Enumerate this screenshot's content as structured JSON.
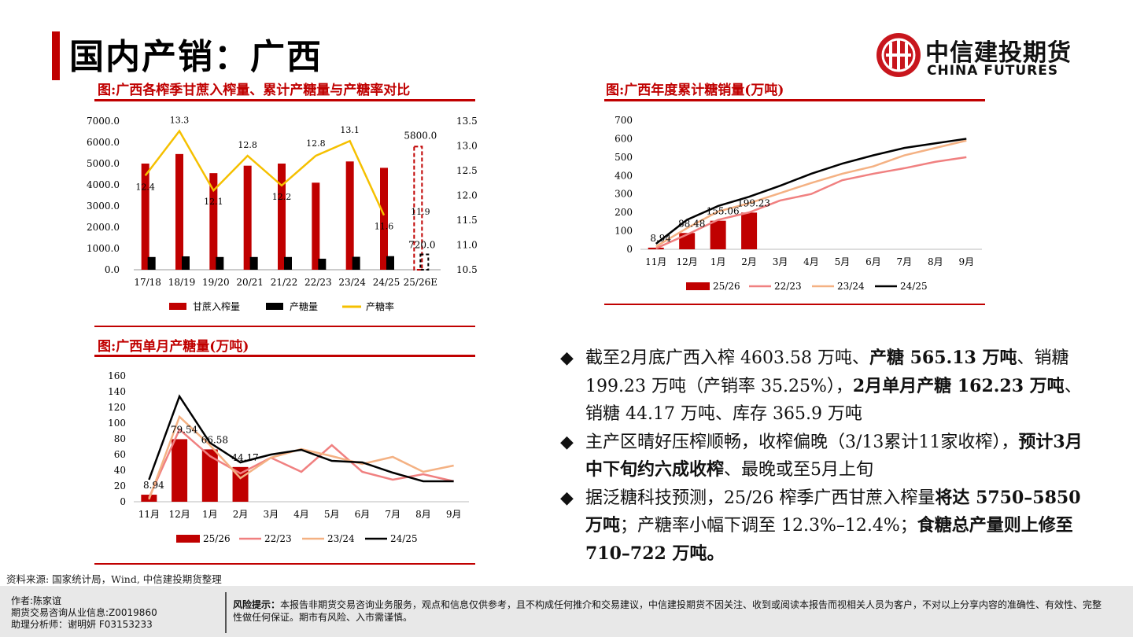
{
  "page": {
    "title": "国内产销：广西",
    "logo_cn": "中信建投期货",
    "logo_en": "CHINA FUTURES",
    "source": "资料来源: 国家统计局，Wind, 中信建投期货整理"
  },
  "colors": {
    "accent": "#c00000",
    "line_yellow": "#f5c000",
    "line_pink": "#f08080",
    "line_peach": "#f4b183",
    "line_black": "#000000"
  },
  "chart_data": [
    {
      "id": "crush",
      "type": "bar",
      "title": "图:广西各榨季甘蔗入榨量、累计产糖量与产糖率对比",
      "categories": [
        "17/18",
        "18/19",
        "19/20",
        "20/21",
        "21/22",
        "22/23",
        "23/24",
        "24/25",
        "25/26E"
      ],
      "series": [
        {
          "name": "甘蔗入榨量",
          "axis": "left",
          "values": [
            5000,
            5450,
            4550,
            4900,
            5000,
            4100,
            5100,
            4800,
            5800
          ]
        },
        {
          "name": "产糖量",
          "axis": "left",
          "values": [
            600,
            630,
            600,
            600,
            600,
            520,
            610,
            640,
            720
          ]
        },
        {
          "name": "产糖率",
          "axis": "right",
          "kind": "line",
          "values": [
            12.4,
            13.3,
            12.1,
            12.8,
            12.2,
            12.8,
            13.1,
            11.6,
            11.9
          ]
        }
      ],
      "bar_labels": [
        "5800.0",
        "720.0"
      ],
      "line_labels": [
        "12.4",
        "13.3",
        "12.1",
        "12.8",
        "12.2",
        "12.8",
        "13.1",
        "11.6",
        "11.9"
      ],
      "y_left_ticks": [
        "7000.0",
        "6000.0",
        "5000.0",
        "4000.0",
        "3000.0",
        "2000.0",
        "1000.0",
        "0.0"
      ],
      "y_right_ticks": [
        "13.5",
        "13.0",
        "12.5",
        "12.0",
        "11.5",
        "11.0",
        "10.5"
      ],
      "ylim_left": [
        0,
        7000
      ],
      "ylim_right": [
        10.5,
        13.5
      ],
      "legend": "bottom"
    },
    {
      "id": "sales",
      "type": "bar",
      "title": "图:广西年度累计糖销量(万吨)",
      "categories": [
        "11月",
        "12月",
        "1月",
        "2月",
        "3月",
        "4月",
        "5月",
        "6月",
        "7月",
        "8月",
        "9月"
      ],
      "bars": {
        "name": "25/26",
        "values": [
          8.94,
          88.48,
          155.06,
          199.23
        ]
      },
      "bar_labels": [
        "8.94",
        "88.48",
        "155.06",
        "199.23"
      ],
      "series": [
        {
          "name": "22/23",
          "values": [
            5,
            80,
            160,
            200,
            265,
            300,
            375,
            410,
            440,
            475,
            500
          ]
        },
        {
          "name": "23/24",
          "values": [
            15,
            115,
            205,
            250,
            305,
            360,
            410,
            450,
            510,
            550,
            590
          ]
        },
        {
          "name": "24/25",
          "values": [
            30,
            160,
            235,
            285,
            345,
            410,
            465,
            510,
            550,
            575,
            600
          ]
        }
      ],
      "y_ticks": [
        "700",
        "600",
        "500",
        "400",
        "300",
        "200",
        "100",
        "0"
      ],
      "ylim": [
        0,
        700
      ],
      "legend": "bottom"
    },
    {
      "id": "monthly",
      "type": "bar",
      "title": "图:广西单月产糖量(万吨)",
      "categories": [
        "11月",
        "12月",
        "1月",
        "2月",
        "3月",
        "4月",
        "5月",
        "6月",
        "7月",
        "8月",
        "9月"
      ],
      "bars": {
        "name": "25/26",
        "values": [
          8.94,
          79.54,
          66.58,
          44.17
        ]
      },
      "bar_labels": [
        "8.94",
        "79.54",
        "66.58",
        "44.17"
      ],
      "series": [
        {
          "name": "22/23",
          "values": [
            5,
            92,
            58,
            36,
            56,
            38,
            72,
            38,
            28,
            35,
            26
          ]
        },
        {
          "name": "23/24",
          "values": [
            3,
            108,
            72,
            30,
            56,
            67,
            58,
            48,
            57,
            38,
            46
          ]
        },
        {
          "name": "24/25",
          "values": [
            28,
            134,
            75,
            50,
            60,
            66,
            52,
            50,
            37,
            26,
            26
          ]
        }
      ],
      "y_ticks": [
        "160",
        "140",
        "120",
        "100",
        "80",
        "60",
        "40",
        "20",
        "0"
      ],
      "ylim": [
        0,
        160
      ],
      "legend": "bottom"
    }
  ],
  "bullets": [
    {
      "segments": [
        {
          "text": "截至2月底广西入榨 4603.58 万吨、",
          "bold": false
        },
        {
          "text": "产糖 565.13 万吨",
          "bold": true
        },
        {
          "text": "、销糖 199.23 万吨（产销率 35.25%），",
          "bold": false
        },
        {
          "text": "2月单月产糖 162.23 万吨",
          "bold": true
        },
        {
          "text": "、销糖 44.17 万吨、库存 365.9 万吨",
          "bold": false
        }
      ]
    },
    {
      "segments": [
        {
          "text": "主产区晴好压榨顺畅，收榨偏晚（3/13累计11家收榨），",
          "bold": false
        },
        {
          "text": "预计3月中下旬约六成收榨",
          "bold": true
        },
        {
          "text": "、最晚或至5月上旬",
          "bold": false
        }
      ]
    },
    {
      "segments": [
        {
          "text": "据泛糖科技预测，25/26 榨季广西甘蔗入榨量",
          "bold": false
        },
        {
          "text": "将达 5750–5850 万吨",
          "bold": true
        },
        {
          "text": "；产糖率小幅下调至 12.3%–12.4%；",
          "bold": false
        },
        {
          "text": "食糖总产量则上修至 710–722 万吨。",
          "bold": true
        }
      ]
    }
  ],
  "footer": {
    "author": "作者:陈家谊",
    "license": "期货交易咨询从业信息:Z0019860",
    "assistant": "助理分析师：谢明妍 F03153233",
    "risk_label": "风险提示：",
    "risk_text": "本报告非期货交易咨询业务服务，观点和信息仅供参考，且不构成任何推介和交易建议，中信建投期货不因关注、收到或阅读本报告而视相关人员为客户，不对以上分享内容的准确性、有效性、完整性做任何保证。期市有风险、入市需谨慎。"
  }
}
